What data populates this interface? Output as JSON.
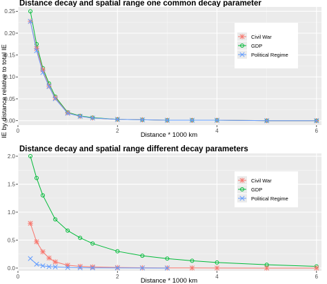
{
  "figure": {
    "ylabel": "IE by distance relative to total IE"
  },
  "colors": {
    "panel_bg": "#ebebeb",
    "grid_major": "#ffffff",
    "civil_war": "#F8766D",
    "gdp": "#00BA38",
    "political_regime": "#619CFF"
  },
  "chart_data": [
    {
      "type": "line",
      "title": "Distance decay and spatial range one common decay parameter",
      "xlabel": "Distance * 1000 km",
      "ylabel": "IE by distance relative to total IE",
      "xlim": [
        0,
        6.1
      ],
      "ylim": [
        -0.01,
        0.26
      ],
      "xticks": [
        0,
        2,
        4,
        6
      ],
      "yticks": [
        0.0,
        0.05,
        0.1,
        0.15,
        0.2,
        0.25
      ],
      "ytick_labels": [
        "0.00",
        "0.05",
        "0.10",
        "0.15",
        "0.20",
        "0.25"
      ],
      "grid": true,
      "legend_position": "right",
      "x": [
        0.25,
        0.375,
        0.5,
        0.625,
        0.75,
        1.0,
        1.25,
        1.5,
        2.0,
        2.5,
        3.0,
        3.5,
        4.0,
        5.0,
        6.0
      ],
      "series": [
        {
          "name": "Civil War",
          "marker": "asterisk",
          "values": [
            0.227,
            0.165,
            0.116,
            0.079,
            0.052,
            0.018,
            0.01,
            0.006,
            0.003,
            0.002,
            0.001,
            0.001,
            0.001,
            0.0,
            0.0
          ]
        },
        {
          "name": "GDP",
          "marker": "circle",
          "values": [
            0.25,
            0.175,
            0.12,
            0.085,
            0.055,
            0.019,
            0.011,
            0.007,
            0.003,
            0.002,
            0.001,
            0.001,
            0.001,
            0.0,
            0.0
          ]
        },
        {
          "name": "Political Regime",
          "marker": "cross",
          "values": [
            0.227,
            0.16,
            0.11,
            0.078,
            0.05,
            0.017,
            0.01,
            0.006,
            0.003,
            0.002,
            0.001,
            0.001,
            0.001,
            0.0,
            0.0
          ]
        }
      ]
    },
    {
      "type": "line",
      "title": "Distance decay and spatial range different decay parameters",
      "xlabel": "Distance * 1000 km",
      "ylabel": "IE by distance relative to total IE",
      "xlim": [
        0,
        6.1
      ],
      "ylim": [
        -0.05,
        2.05
      ],
      "xticks": [
        0,
        2,
        4,
        6
      ],
      "yticks": [
        0.0,
        0.5,
        1.0,
        1.5,
        2.0
      ],
      "ytick_labels": [
        "0.0",
        "0.5",
        "1.0",
        "1.5",
        "2.0"
      ],
      "grid": true,
      "legend_position": "right",
      "series": [
        {
          "name": "Civil War",
          "marker": "asterisk",
          "x": [
            0.25,
            0.375,
            0.5,
            0.625,
            0.75,
            1.0,
            1.25,
            1.5,
            2.0,
            2.5,
            3.0,
            3.5,
            4.0,
            5.0,
            6.0
          ],
          "values": [
            0.8,
            0.47,
            0.29,
            0.18,
            0.11,
            0.05,
            0.03,
            0.02,
            0.01,
            0.005,
            0.003,
            0.002,
            0.001,
            0.0,
            0.0
          ]
        },
        {
          "name": "GDP",
          "marker": "circle",
          "x": [
            0.25,
            0.375,
            0.5,
            0.75,
            1.0,
            1.25,
            1.5,
            2.0,
            2.5,
            3.0,
            3.5,
            4.0,
            5.0,
            6.0
          ],
          "values": [
            2.0,
            1.61,
            1.3,
            0.87,
            0.67,
            0.54,
            0.44,
            0.3,
            0.22,
            0.17,
            0.13,
            0.1,
            0.06,
            0.03
          ]
        },
        {
          "name": "Political Regime",
          "marker": "cross",
          "x": [
            0.25,
            0.375,
            0.5,
            0.625,
            0.75,
            1.0,
            1.25,
            1.5,
            2.0,
            2.5,
            3.0
          ],
          "values": [
            0.17,
            0.07,
            0.04,
            0.025,
            0.02,
            0.01,
            0.005,
            0.003,
            0.002,
            0.001,
            0.0
          ]
        }
      ]
    }
  ]
}
